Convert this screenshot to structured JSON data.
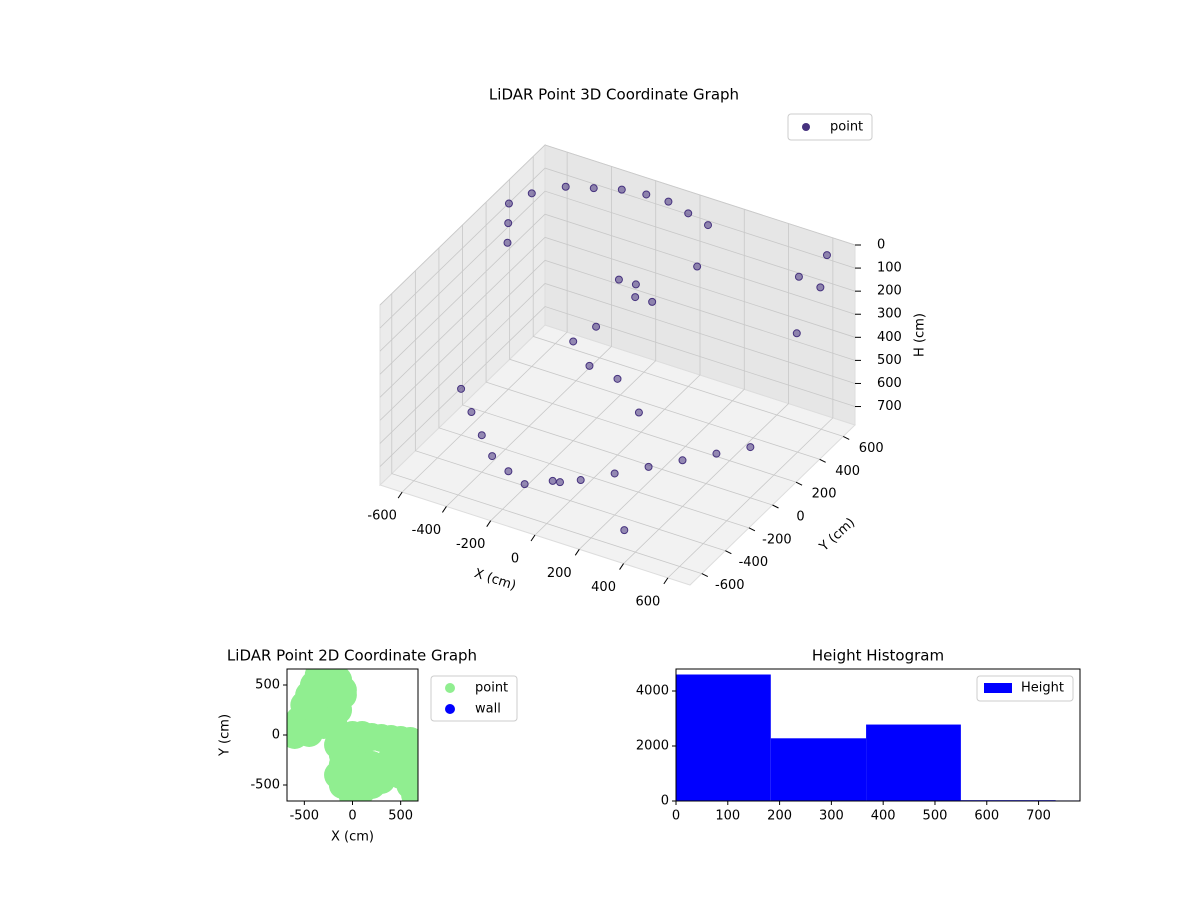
{
  "chart_data": [
    {
      "type": "scatter3d",
      "title": "LiDAR Point 3D Coordinate Graph",
      "xlabel": "X (cm)",
      "ylabel": "Y (cm)",
      "zlabel": "H (cm)",
      "xlim": [
        -700,
        700
      ],
      "ylim": [
        -700,
        700
      ],
      "zlim": [
        780,
        0
      ],
      "xticks": [
        -600,
        -400,
        -200,
        0,
        200,
        400,
        600
      ],
      "yticks": [
        -600,
        -400,
        -200,
        0,
        200,
        400,
        600
      ],
      "zticks": [
        0,
        100,
        200,
        300,
        400,
        500,
        600,
        700
      ],
      "grid": true,
      "legend": "upper right",
      "series": [
        {
          "name": "point",
          "color": "#46327e",
          "x": [
            -650,
            -600,
            -500,
            -400,
            -300,
            -200,
            -100,
            0,
            100,
            -600,
            -550,
            -100,
            0,
            -50,
            50,
            -200,
            -100,
            0,
            -150,
            -600,
            -500,
            -400,
            -300,
            -200,
            -100,
            0,
            100,
            200,
            300,
            400,
            500,
            600,
            650,
            600,
            650,
            200,
            -100,
            350,
            500,
            150
          ],
          "y": [
            300,
            400,
            500,
            550,
            600,
            620,
            620,
            600,
            580,
            200,
            100,
            200,
            150,
            250,
            200,
            0,
            -50,
            0,
            100,
            -200,
            -300,
            -400,
            -500,
            -550,
            -600,
            -550,
            -500,
            -400,
            -300,
            -200,
            -100,
            0,
            500,
            650,
            300,
            300,
            -300,
            -600,
            600,
            -100
          ],
          "z": [
            40,
            30,
            20,
            20,
            20,
            20,
            20,
            30,
            40,
            60,
            80,
            150,
            170,
            180,
            200,
            350,
            400,
            450,
            320,
            580,
            600,
            620,
            630,
            640,
            640,
            620,
            610,
            600,
            590,
            580,
            570,
            560,
            100,
            50,
            200,
            50,
            780,
            700,
            150,
            500
          ]
        }
      ]
    },
    {
      "type": "scatter",
      "title": "LiDAR Point 2D Coordinate Graph",
      "xlabel": "X (cm)",
      "ylabel": "Y (cm)",
      "xlim": [
        -680,
        680
      ],
      "ylim": [
        -660,
        660
      ],
      "xticks": [
        -500,
        0,
        500
      ],
      "yticks": [
        -500,
        0,
        500
      ],
      "legend": "outside right",
      "series": [
        {
          "name": "point",
          "color": "#90ee90",
          "x": [
            -600,
            -550,
            -500,
            -450,
            -400,
            -350,
            -300,
            -250,
            -200,
            -150,
            -100,
            -500,
            -400,
            -300,
            -200,
            -100,
            -350,
            -250,
            -150,
            -450,
            -300,
            -200,
            0,
            100,
            200,
            300,
            400,
            500,
            600,
            650,
            -150,
            -100,
            0,
            100,
            200,
            300,
            400,
            500,
            600,
            -150,
            -100,
            0,
            100,
            200,
            300,
            -100,
            0,
            600,
            650,
            500
          ],
          "y": [
            0,
            150,
            300,
            400,
            500,
            600,
            640,
            620,
            600,
            550,
            450,
            100,
            200,
            300,
            350,
            400,
            450,
            500,
            250,
            20,
            100,
            150,
            0,
            0,
            -20,
            -30,
            -40,
            -50,
            -60,
            -100,
            -100,
            -200,
            -200,
            -250,
            -300,
            -350,
            -250,
            -200,
            -300,
            -400,
            -500,
            -600,
            -550,
            -500,
            -450,
            -300,
            -400,
            -500,
            -600,
            -400
          ]
        },
        {
          "name": "wall",
          "color": "#0000ff",
          "x": [],
          "y": []
        }
      ]
    },
    {
      "type": "histogram",
      "title": "Height Histogram",
      "bins": [
        0,
        183,
        367,
        550,
        733,
        916
      ],
      "values": [
        4600,
        2280,
        2780,
        30,
        20
      ],
      "xlim": [
        0,
        780
      ],
      "ylim": [
        0,
        4800
      ],
      "xticks": [
        0,
        100,
        200,
        300,
        400,
        500,
        600,
        700
      ],
      "yticks": [
        0,
        2000,
        4000
      ],
      "legend": "upper right",
      "series": [
        {
          "name": "Height",
          "color": "#0000ff"
        }
      ]
    }
  ]
}
